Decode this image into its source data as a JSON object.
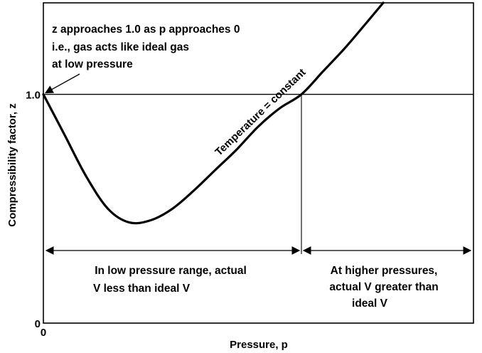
{
  "chart_data": {
    "type": "line",
    "title": "",
    "xlabel": "Pressure, p",
    "ylabel": "Compressibility factor, z",
    "xlim": [
      0,
      10
    ],
    "ylim": [
      0,
      1.4
    ],
    "x_ticks": [
      {
        "value": 0,
        "label": "0"
      }
    ],
    "y_ticks": [
      {
        "value": 0,
        "label": "0"
      },
      {
        "value": 1.0,
        "label": "1.0"
      }
    ],
    "reference_line": {
      "y": 1.0
    },
    "crossover": {
      "x": 6.0
    },
    "series": [
      {
        "name": "Temperature = constant",
        "x": [
          0,
          0.5,
          1.0,
          1.5,
          2.0,
          2.5,
          3.0,
          3.5,
          4.0,
          4.5,
          5.0,
          5.5,
          6.0,
          6.5,
          7.0,
          7.5,
          7.9
        ],
        "y": [
          1.0,
          0.82,
          0.64,
          0.5,
          0.44,
          0.45,
          0.5,
          0.58,
          0.67,
          0.76,
          0.86,
          0.94,
          1.0,
          1.1,
          1.2,
          1.31,
          1.4
        ]
      }
    ],
    "annotations": {
      "top_left": [
        "z approaches 1.0 as p approaches 0",
        "i.e., gas acts like ideal gas",
        "at low pressure"
      ],
      "low_range": [
        "In low pressure range, actual",
        "V less than ideal V"
      ],
      "high_range": [
        "At higher pressures,",
        "actual V greater than",
        "ideal V"
      ]
    },
    "grid": false,
    "legend": "none",
    "colors": {
      "line": "#000000",
      "background": "#ffffff"
    }
  }
}
